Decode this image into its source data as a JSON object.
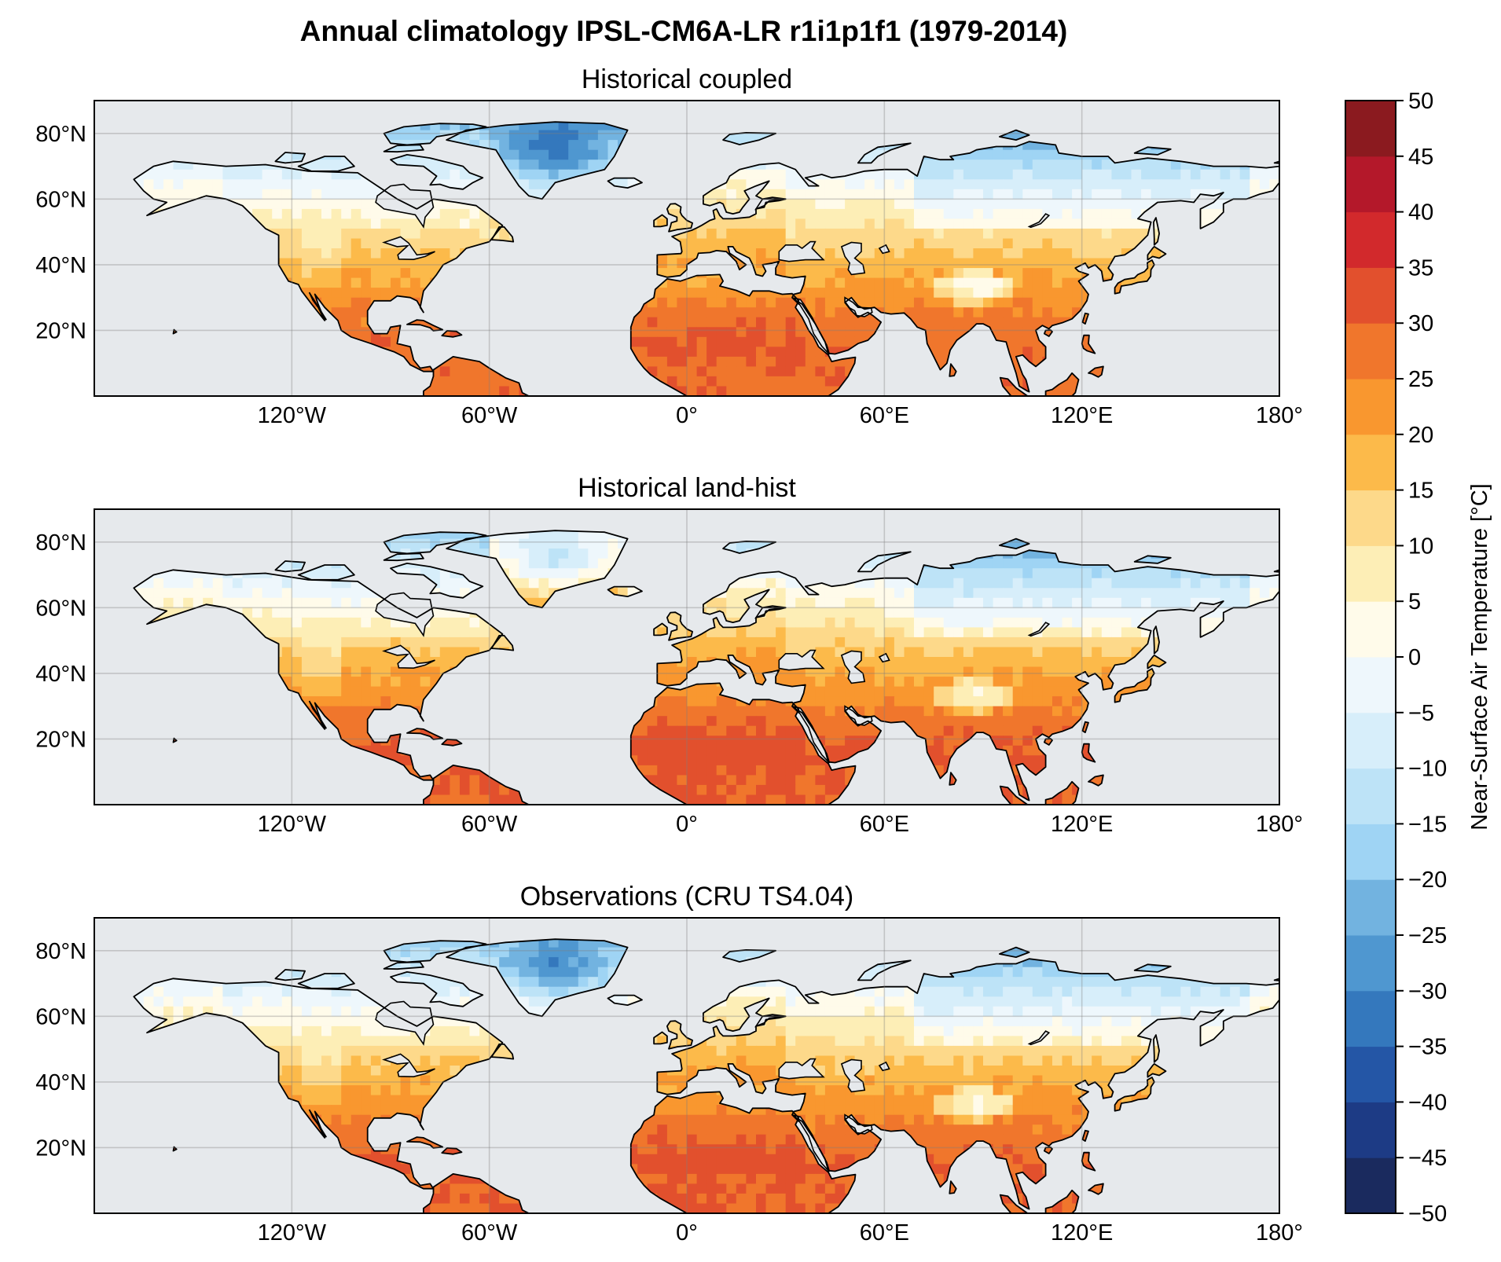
{
  "title": "Annual climatology IPSL-CM6A-LR r1i1p1f1 (1979-2014)",
  "panels": [
    {
      "title": "Historical coupled",
      "variant": "coupled"
    },
    {
      "title": "Historical land-hist",
      "variant": "landhist"
    },
    {
      "title": "Observations (CRU TS4.04)",
      "variant": "obs"
    }
  ],
  "map_extent": {
    "lon": [
      -180,
      180
    ],
    "lat": [
      0,
      90
    ]
  },
  "lon_ticks": [
    -120,
    -60,
    0,
    60,
    120,
    180
  ],
  "lon_tick_labels": [
    "120°W",
    "60°W",
    "0°",
    "60°E",
    "120°E",
    "180°"
  ],
  "lat_ticks": [
    20,
    40,
    60,
    80
  ],
  "lat_tick_labels": [
    "20°N",
    "40°N",
    "60°N",
    "80°N"
  ],
  "ocean_color": "#e6e9ec",
  "colorbar": {
    "label": "Near-Surface Air Temperature [°C]",
    "levels": [
      -50,
      -45,
      -40,
      -35,
      -30,
      -25,
      -20,
      -15,
      -10,
      -5,
      0,
      5,
      10,
      15,
      20,
      25,
      30,
      35,
      40,
      45,
      50
    ],
    "tick_labels": [
      "−50",
      "−45",
      "−40",
      "−35",
      "−30",
      "−25",
      "−20",
      "−15",
      "−10",
      "−5",
      "0",
      "5",
      "10",
      "15",
      "20",
      "25",
      "30",
      "35",
      "40",
      "45",
      "50"
    ],
    "colors": [
      "#1a2a5e",
      "#1d3b85",
      "#2456a6",
      "#3478bd",
      "#4f97d0",
      "#72b3e0",
      "#9fd4f4",
      "#bde3f7",
      "#d7eefa",
      "#eef7fc",
      "#fffbea",
      "#fdeeb6",
      "#fdd98a",
      "#fcba4a",
      "#f9972f",
      "#f0762c",
      "#e2502d",
      "#d2292c",
      "#b4182a",
      "#8b1a1f"
    ]
  }
}
